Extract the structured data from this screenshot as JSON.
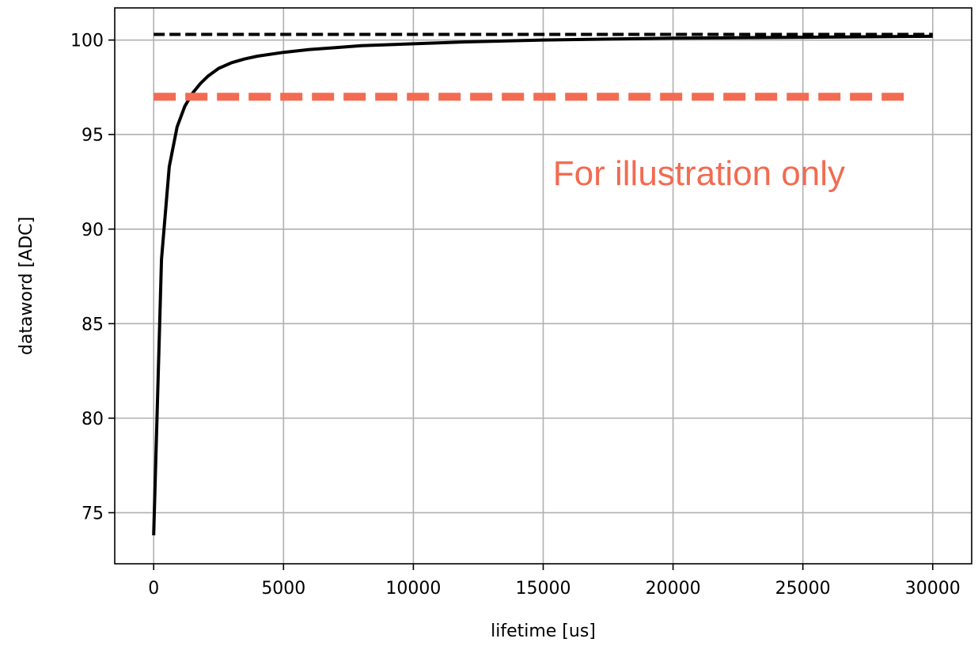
{
  "chart_data": {
    "type": "line",
    "title": "",
    "xlabel": "lifetime [us]",
    "ylabel": "dataword [ADC]",
    "xlim": [
      -1500,
      31500
    ],
    "ylim": [
      72.3,
      101.7
    ],
    "xticks": [
      0,
      5000,
      10000,
      15000,
      20000,
      25000,
      30000
    ],
    "xtick_labels": [
      "0",
      "5000",
      "10000",
      "15000",
      "20000",
      "25000",
      "30000"
    ],
    "yticks": [
      75,
      80,
      85,
      90,
      95,
      100
    ],
    "ytick_labels": [
      "75",
      "80",
      "85",
      "90",
      "95",
      "100"
    ],
    "grid": true,
    "legend": "none",
    "annotation": {
      "text": "For illustration only",
      "x": 21000,
      "y": 93.0,
      "color": "#f26b52"
    },
    "series": [
      {
        "style": "solid",
        "color": "#000000",
        "x": [
          0,
          300,
          600,
          900,
          1200,
          1500,
          1800,
          2100,
          2500,
          3000,
          3500,
          4000,
          5000,
          6000,
          7000,
          8000,
          10000,
          12000,
          15000,
          20000,
          25000,
          30000
        ],
        "y": [
          73.8,
          88.4,
          93.3,
          95.4,
          96.5,
          97.2,
          97.7,
          98.1,
          98.5,
          98.8,
          99.0,
          99.15,
          99.35,
          99.5,
          99.6,
          99.7,
          99.8,
          99.9,
          100.0,
          100.1,
          100.15,
          100.2
        ]
      },
      {
        "style": "dashed",
        "color": "#000000",
        "x": [
          0,
          30000
        ],
        "y": [
          100.3,
          100.3
        ]
      },
      {
        "style": "dashed-thick",
        "color": "#f26b52",
        "x": [
          0,
          29000
        ],
        "y": [
          97.0,
          97.0
        ]
      }
    ]
  }
}
